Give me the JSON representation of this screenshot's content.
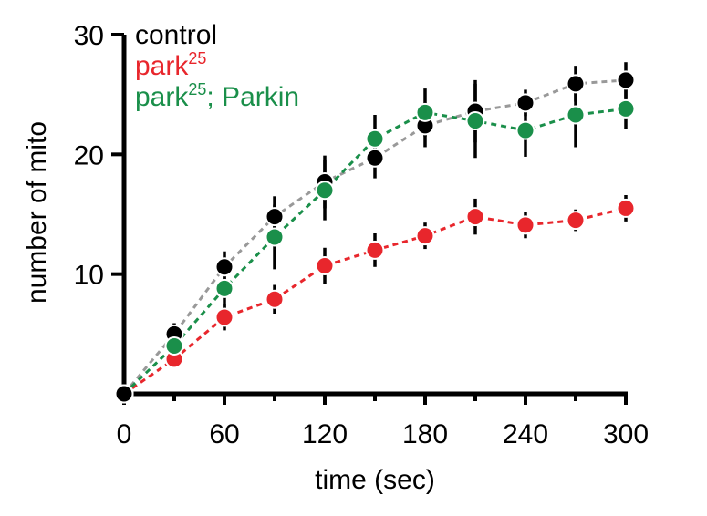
{
  "chart_data": {
    "type": "scatter",
    "title": "",
    "xlabel": "time (sec)",
    "ylabel": "number of mito",
    "xlim": [
      0,
      300
    ],
    "ylim": [
      0,
      30
    ],
    "x_ticks": [
      0,
      60,
      120,
      180,
      240,
      300
    ],
    "y_ticks": [
      10,
      20,
      30
    ],
    "x_ticks_minor": [
      30,
      90,
      150,
      210,
      270
    ],
    "legend_position": "top-left",
    "x": [
      0,
      30,
      60,
      90,
      120,
      150,
      180,
      210,
      240,
      270,
      300
    ],
    "series": [
      {
        "name": "control",
        "legend_base": "control",
        "legend_sup": "",
        "legend_suffix": "",
        "color": "#000000",
        "line_color": "#999999",
        "values": [
          0,
          5.0,
          10.6,
          14.8,
          17.7,
          19.7,
          22.4,
          23.6,
          24.3,
          25.9,
          26.2
        ],
        "errors": [
          0,
          0.9,
          1.3,
          1.7,
          2.2,
          1.7,
          1.8,
          2.6,
          1.1,
          1.5,
          1.5
        ]
      },
      {
        "name": "park25",
        "legend_base": "park",
        "legend_sup": "25",
        "legend_suffix": "",
        "color": "#e8262c",
        "line_color": "#e8262c",
        "values": [
          0,
          2.9,
          6.4,
          7.9,
          10.7,
          12.0,
          13.2,
          14.8,
          14.1,
          14.5,
          15.5
        ],
        "errors": [
          0,
          0.4,
          1.1,
          1.2,
          1.5,
          1.4,
          1.1,
          1.5,
          1.1,
          0.9,
          1.1
        ]
      },
      {
        "name": "park25; Parkin",
        "legend_base": "park",
        "legend_sup": "25",
        "legend_suffix": "; Parkin",
        "color": "#1a8f4a",
        "line_color": "#1a8f4a",
        "values": [
          0,
          4.0,
          8.8,
          13.1,
          17.0,
          21.3,
          23.5,
          22.8,
          22.0,
          23.3,
          23.8
        ],
        "errors": [
          0,
          0.7,
          1.7,
          2.7,
          2.5,
          2.0,
          2.0,
          3.1,
          2.2,
          2.7,
          1.7
        ]
      }
    ]
  }
}
